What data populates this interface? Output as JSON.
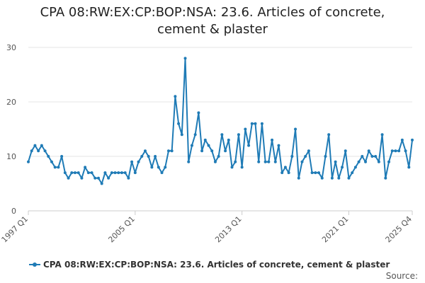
{
  "chart_data": {
    "type": "line",
    "title_line1": "CPA 08:RW:EX:CP:BOP:NSA: 23.6. Articles of concrete,",
    "title_line2": "cement & plaster",
    "xlabel": "",
    "ylabel": "",
    "ylim": [
      0,
      30
    ],
    "yticks": [
      0,
      10,
      20,
      30
    ],
    "xlim": [
      1997.0,
      2025.75
    ],
    "xticks": [
      {
        "label": "1997 Q1",
        "x": 1997.0
      },
      {
        "label": "2005 Q1",
        "x": 2005.0
      },
      {
        "label": "2013 Q1",
        "x": 2013.0
      },
      {
        "label": "2021 Q1",
        "x": 2021.0
      },
      {
        "label": "2025 Q4",
        "x": 2025.75
      }
    ],
    "grid": "horizontal",
    "legend_position": "bottom",
    "line_color": "#1f7bb6",
    "series": [
      {
        "name": "CPA 08:RW:EX:CP:BOP:NSA: 23.6. Articles of concrete, cement & plaster",
        "start": "1997 Q1",
        "frequency": "quarterly",
        "values": [
          9,
          11,
          12,
          11,
          12,
          11,
          10,
          9,
          8,
          8,
          10,
          7,
          6,
          7,
          7,
          7,
          6,
          8,
          7,
          7,
          6,
          6,
          5,
          7,
          6,
          7,
          7,
          7,
          7,
          7,
          6,
          9,
          7,
          9,
          10,
          11,
          10,
          8,
          10,
          8,
          7,
          8,
          11,
          11,
          21,
          16,
          14,
          28,
          9,
          12,
          14,
          18,
          11,
          13,
          12,
          11,
          9,
          10,
          14,
          11,
          13,
          8,
          9,
          14,
          8,
          15,
          12,
          16,
          16,
          9,
          16,
          9,
          9,
          13,
          9,
          12,
          7,
          8,
          7,
          10,
          15,
          6,
          9,
          10,
          11,
          7,
          7,
          7,
          6,
          10,
          14,
          6,
          9,
          6,
          8,
          11,
          6,
          7,
          8,
          9,
          10,
          9,
          11,
          10,
          10,
          9,
          14,
          6,
          9,
          11,
          11,
          11,
          13,
          11,
          8,
          13
        ]
      }
    ]
  },
  "footer": {
    "source_label": "Source:"
  }
}
